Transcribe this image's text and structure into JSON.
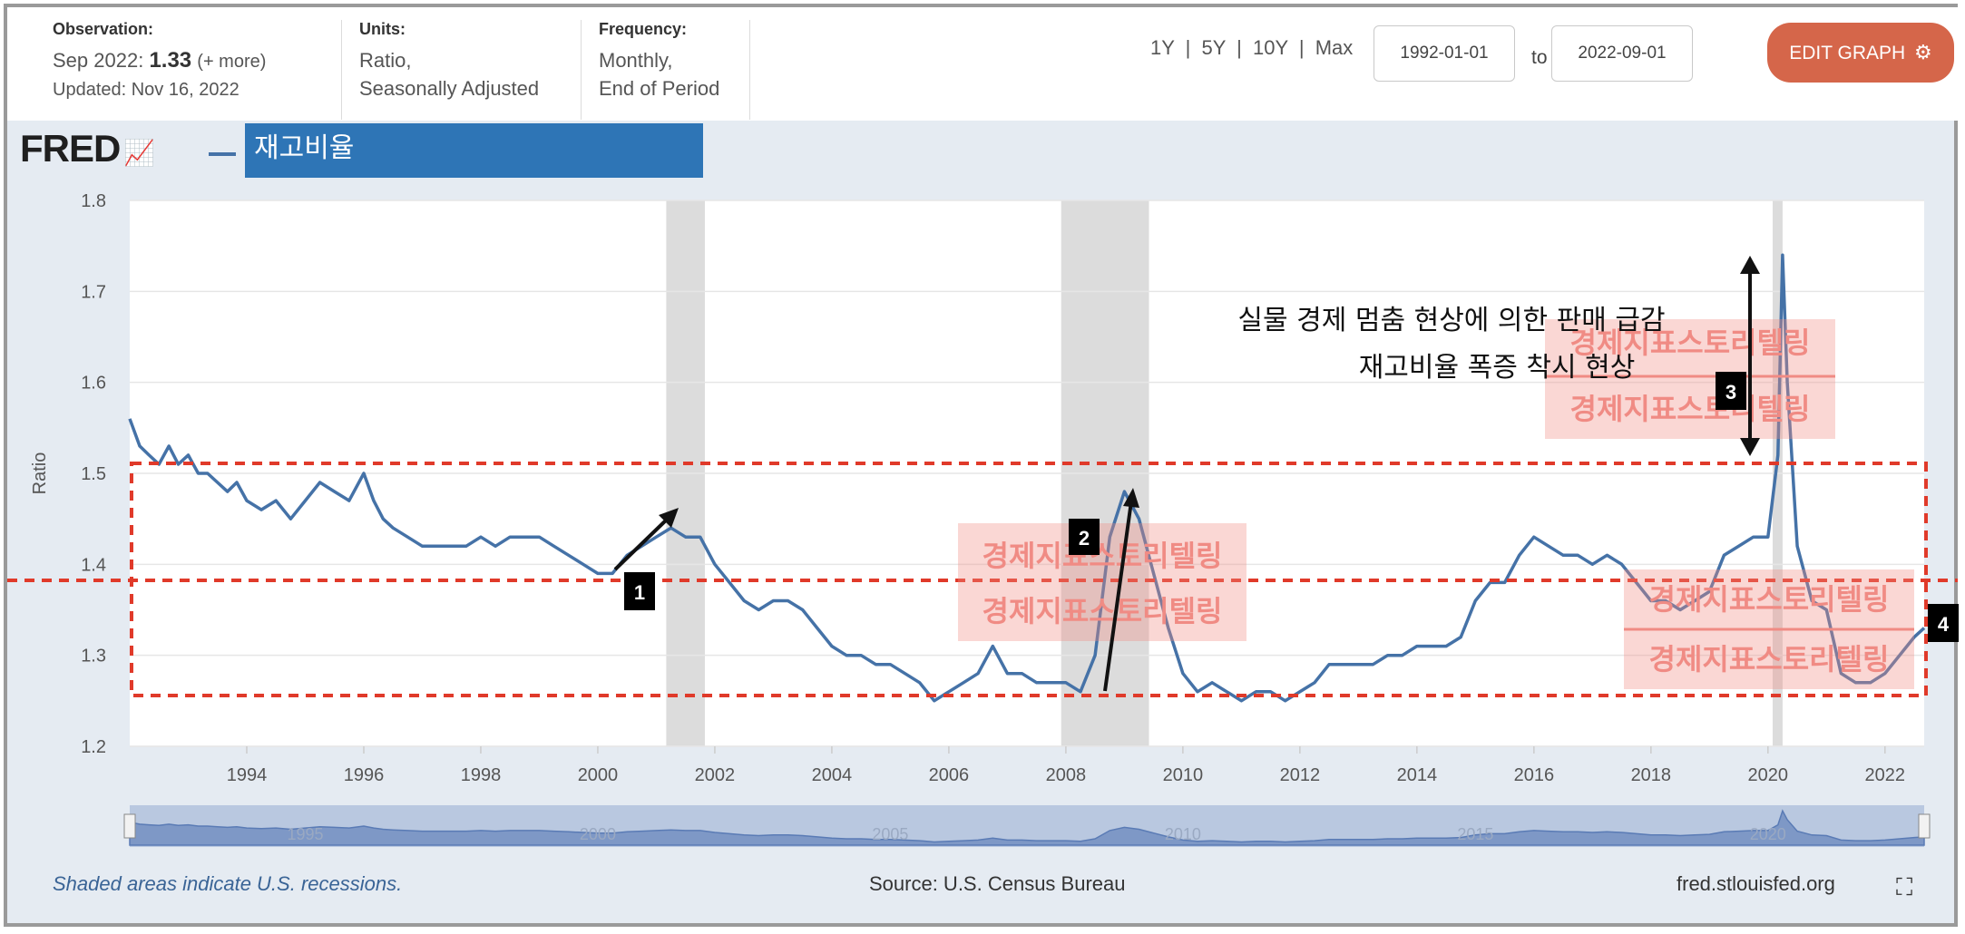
{
  "header": {
    "observation_label": "Observation:",
    "observation_date": "Sep 2022:",
    "observation_value": "1.33",
    "observation_more": "(+ more)",
    "updated": "Updated: Nov 16, 2022",
    "units_label": "Units:",
    "units_line1": "Ratio,",
    "units_line2": "Seasonally Adjusted",
    "frequency_label": "Frequency:",
    "frequency_line1": "Monthly,",
    "frequency_line2": "End of Period",
    "range_1y": "1Y",
    "range_5y": "5Y",
    "range_10y": "10Y",
    "range_max": "Max",
    "range_sep": "|",
    "start_date": "1992-01-01",
    "to_label": "to",
    "end_date": "2022-09-01",
    "edit_button": "EDIT GRAPH",
    "gear_icon": "gear-icon"
  },
  "title": "재고비율",
  "logo_text": "FRED",
  "annotations": {
    "line1": "실물 경제 멈춤 현상에 의한 판매 급감",
    "line2": "재고비율 폭증 착시 현상",
    "watermark": "경제지표스토리텔링",
    "marker_1": "1",
    "marker_2": "2",
    "marker_3": "3",
    "marker_4": "4",
    "box_color": "#e03a2a",
    "watermark_color": "#f08b84"
  },
  "footer": {
    "note": "Shaded areas indicate U.S. recessions.",
    "source": "Source: U.S. Census Bureau",
    "site": "fred.stlouisfed.org"
  },
  "chart_data": {
    "type": "line",
    "ylabel": "Ratio",
    "xlabel": "",
    "xlim": [
      1992.0,
      2022.67
    ],
    "ylim": [
      1.2,
      1.8
    ],
    "yticks": [
      "1.2",
      "1.3",
      "1.4",
      "1.5",
      "1.6",
      "1.7",
      "1.8"
    ],
    "xticks": [
      "1994",
      "1996",
      "1998",
      "2000",
      "2002",
      "2004",
      "2006",
      "2008",
      "2010",
      "2012",
      "2014",
      "2016",
      "2018",
      "2020",
      "2022"
    ],
    "navigator_labels": [
      "1995",
      "2000",
      "2005",
      "2010",
      "2015",
      "2020"
    ],
    "line_color": "#4572a7",
    "recessions": [
      [
        2001.17,
        2001.83
      ],
      [
        2007.92,
        2009.42
      ],
      [
        2020.08,
        2020.25
      ]
    ],
    "series": [
      {
        "x": [
          1992.0,
          1992.17,
          1992.33,
          1992.5,
          1992.67,
          1992.83,
          1993.0,
          1993.17,
          1993.33,
          1993.5,
          1993.67,
          1993.83,
          1994.0,
          1994.25,
          1994.5,
          1994.75,
          1995.0,
          1995.25,
          1995.5,
          1995.75,
          1996.0,
          1996.17,
          1996.33,
          1996.5,
          1996.75,
          1997.0,
          1997.25,
          1997.5,
          1997.75,
          1998.0,
          1998.25,
          1998.5,
          1998.75,
          1999.0,
          1999.25,
          1999.5,
          1999.75,
          2000.0,
          2000.25,
          2000.5,
          2000.75,
          2001.0,
          2001.25,
          2001.5,
          2001.75,
          2002.0,
          2002.25,
          2002.5,
          2002.75,
          2003.0,
          2003.25,
          2003.5,
          2003.75,
          2004.0,
          2004.25,
          2004.5,
          2004.75,
          2005.0,
          2005.25,
          2005.5,
          2005.75,
          2006.0,
          2006.25,
          2006.5,
          2006.75,
          2007.0,
          2007.25,
          2007.5,
          2007.75,
          2008.0,
          2008.25,
          2008.5,
          2008.75,
          2009.0,
          2009.25,
          2009.5,
          2009.75,
          2010.0,
          2010.25,
          2010.5,
          2010.75,
          2011.0,
          2011.25,
          2011.5,
          2011.75,
          2012.0,
          2012.25,
          2012.5,
          2012.75,
          2013.0,
          2013.25,
          2013.5,
          2013.75,
          2014.0,
          2014.25,
          2014.5,
          2014.75,
          2015.0,
          2015.25,
          2015.5,
          2015.75,
          2016.0,
          2016.25,
          2016.5,
          2016.75,
          2017.0,
          2017.25,
          2017.5,
          2017.75,
          2018.0,
          2018.25,
          2018.5,
          2018.75,
          2019.0,
          2019.25,
          2019.5,
          2019.75,
          2020.0,
          2020.17,
          2020.25,
          2020.33,
          2020.5,
          2020.75,
          2021.0,
          2021.25,
          2021.5,
          2021.75,
          2022.0,
          2022.25,
          2022.5,
          2022.67
        ],
        "y": [
          1.56,
          1.53,
          1.52,
          1.51,
          1.53,
          1.51,
          1.52,
          1.5,
          1.5,
          1.49,
          1.48,
          1.49,
          1.47,
          1.46,
          1.47,
          1.45,
          1.47,
          1.49,
          1.48,
          1.47,
          1.5,
          1.47,
          1.45,
          1.44,
          1.43,
          1.42,
          1.42,
          1.42,
          1.42,
          1.43,
          1.42,
          1.43,
          1.43,
          1.43,
          1.42,
          1.41,
          1.4,
          1.39,
          1.39,
          1.41,
          1.42,
          1.43,
          1.44,
          1.43,
          1.43,
          1.4,
          1.38,
          1.36,
          1.35,
          1.36,
          1.36,
          1.35,
          1.33,
          1.31,
          1.3,
          1.3,
          1.29,
          1.29,
          1.28,
          1.27,
          1.25,
          1.26,
          1.27,
          1.28,
          1.31,
          1.28,
          1.28,
          1.27,
          1.27,
          1.27,
          1.26,
          1.3,
          1.43,
          1.48,
          1.45,
          1.39,
          1.33,
          1.28,
          1.26,
          1.27,
          1.26,
          1.25,
          1.26,
          1.26,
          1.25,
          1.26,
          1.27,
          1.29,
          1.29,
          1.29,
          1.29,
          1.3,
          1.3,
          1.31,
          1.31,
          1.31,
          1.32,
          1.36,
          1.38,
          1.38,
          1.41,
          1.43,
          1.42,
          1.41,
          1.41,
          1.4,
          1.41,
          1.4,
          1.38,
          1.36,
          1.36,
          1.35,
          1.36,
          1.37,
          1.41,
          1.42,
          1.43,
          1.43,
          1.52,
          1.74,
          1.6,
          1.42,
          1.36,
          1.35,
          1.28,
          1.27,
          1.27,
          1.28,
          1.3,
          1.32,
          1.33
        ]
      }
    ]
  }
}
